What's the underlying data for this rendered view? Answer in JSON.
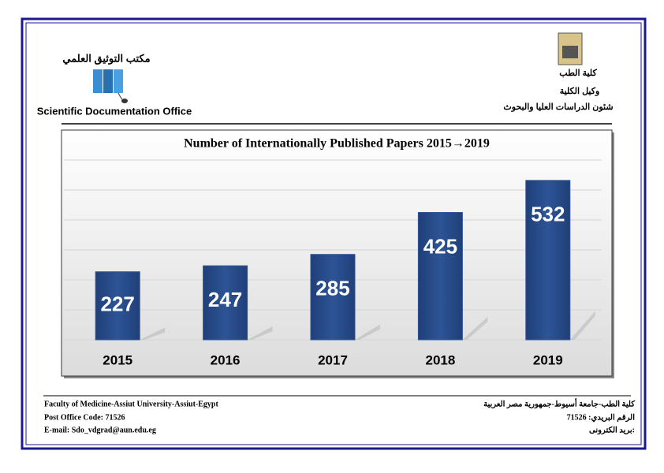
{
  "header": {
    "office_ar": "مكتب التوثيق العلمي",
    "office_en": "Scientific Documentation Office",
    "faculty_ar": "كلية الطب",
    "vice_dean_ar": "وكيل الكلية",
    "affairs_ar": "شئون الدراسات العليا والبحوث"
  },
  "chart_data": {
    "type": "bar",
    "title": "Number of Internationally Published Papers 2015→2019",
    "categories": [
      "2015",
      "2016",
      "2017",
      "2018",
      "2019"
    ],
    "values": [
      227,
      247,
      285,
      425,
      532
    ],
    "color": "#2e5496",
    "ylim": [
      0,
      600
    ],
    "yticks": [
      0,
      100,
      200,
      300,
      400,
      500,
      600
    ],
    "grid": true
  },
  "footer": {
    "address_en": "Faculty of Medicine-Assiut University-Assiut-Egypt",
    "postcode_en": "Post Office Code: 71526",
    "email_en": "E-mail: Sdo_vdgrad@aun.edu.eg",
    "address_ar": "كلية الطب-جامعة أسيوط-جمهورية مصر العربية",
    "postcode_ar": "الرقم البريدي: 71526",
    "email_ar": "بريد الكترونى:"
  }
}
